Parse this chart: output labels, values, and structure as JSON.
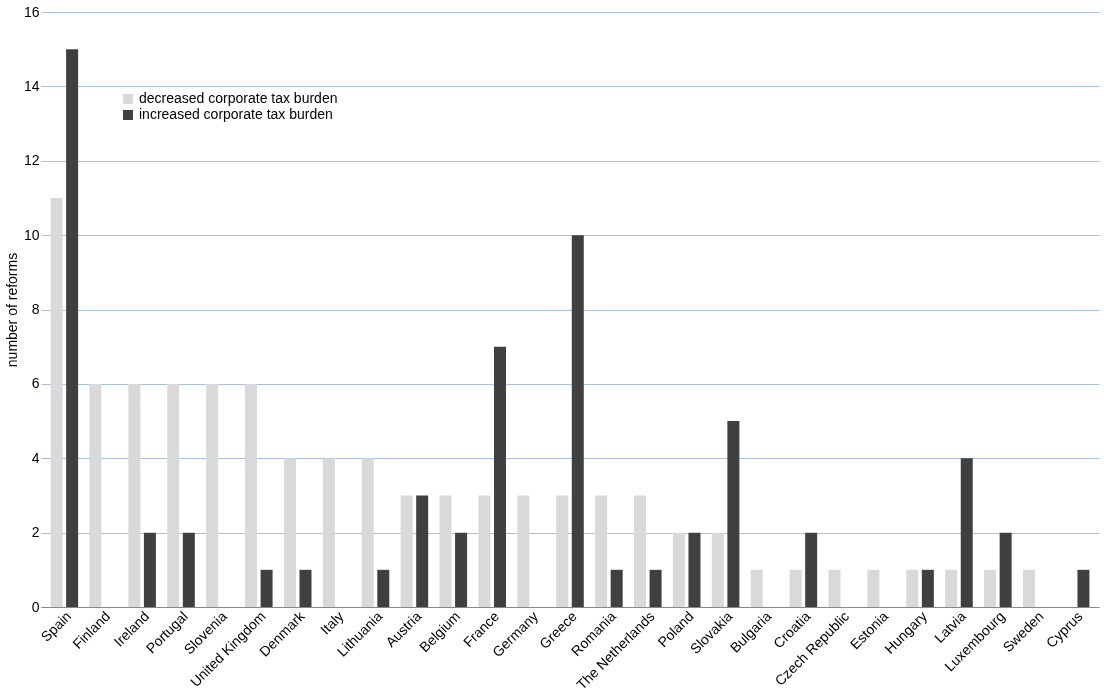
{
  "chart_data": {
    "type": "bar",
    "ylabel": "number of reforms",
    "categories": [
      "Spain",
      "Finland",
      "Ireland",
      "Portugal",
      "Slovenia",
      "United Kingdom",
      "Denmark",
      "Italy",
      "Lithuania",
      "Austria",
      "Belgium",
      "France",
      "Germany",
      "Greece",
      "Romania",
      "The Netherlands",
      "Poland",
      "Slovakia",
      "Bulgaria",
      "Croatia",
      "Czech Republic",
      "Estonia",
      "Hungary",
      "Latvia",
      "Luxembourg",
      "Sweden",
      "Cyprus"
    ],
    "series": [
      {
        "name": "decreased corporate tax burden",
        "color": "#d9d9d9",
        "values": [
          11,
          6,
          6,
          6,
          6,
          6,
          4,
          4,
          4,
          3,
          3,
          3,
          3,
          3,
          3,
          3,
          2,
          2,
          1,
          1,
          1,
          1,
          1,
          1,
          1,
          1,
          0
        ]
      },
      {
        "name": "increased corporate tax burden",
        "color": "#404040",
        "values": [
          15,
          0,
          2,
          2,
          0,
          1,
          1,
          0,
          1,
          3,
          2,
          7,
          0,
          10,
          1,
          1,
          2,
          5,
          0,
          2,
          0,
          0,
          1,
          4,
          2,
          0,
          1
        ]
      }
    ],
    "ylim": [
      0,
      16
    ],
    "yticks": [
      0,
      2,
      4,
      6,
      8,
      10,
      12,
      14,
      16
    ],
    "grid": "y",
    "legend": "top left"
  }
}
